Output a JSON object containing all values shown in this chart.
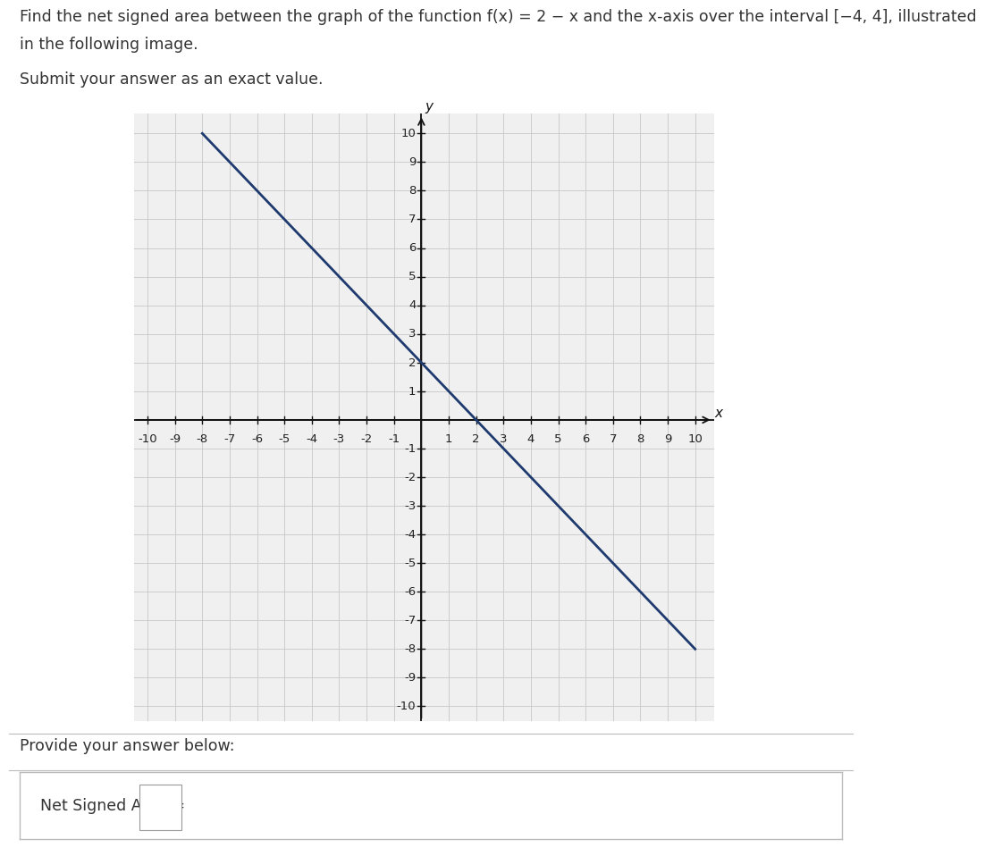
{
  "title_line1": "Find the net signed area between the graph of the function ",
  "title_func": "f(x) = 2 − x",
  "title_line1b": " and the x-axis over the interval [−4, 4], illustrated",
  "title_line2": "in the following image.",
  "submit_text": "Submit your answer as an exact value.",
  "provide_text": "Provide your answer below:",
  "answer_label": "Net Signed Area =",
  "x_label": "x",
  "y_label": "y",
  "x_min": -10,
  "x_max": 10,
  "y_min": -10,
  "y_max": 10,
  "line_x_start": -8,
  "line_x_end": 10,
  "line_y_start": 10,
  "line_y_end": -8,
  "line_color": "#1e3a6e",
  "line_width": 2.0,
  "grid_color": "#cccccc",
  "axis_color": "#111111",
  "bg_color": "#ffffff",
  "plot_bg_color": "#f0f0f0",
  "tick_label_color": "#222222",
  "text_color": "#333333",
  "title_fontsize": 12.5,
  "tick_fontsize": 9.5,
  "axis_label_fontsize": 11
}
